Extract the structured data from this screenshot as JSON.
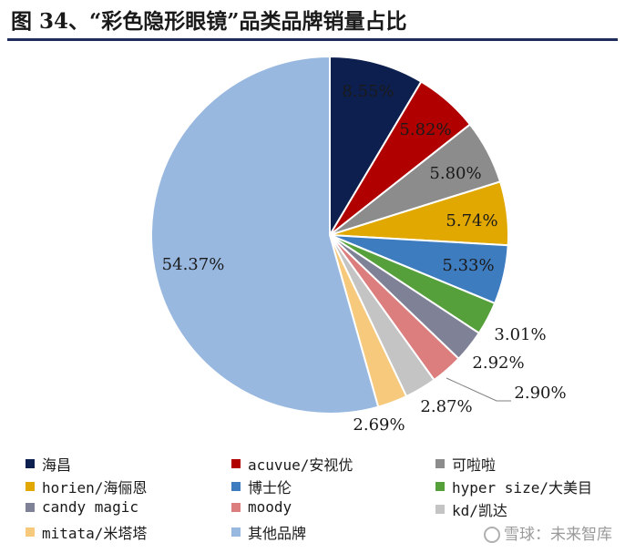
{
  "title": "图 34、“彩色隐形眼镜”品类品牌销量占比",
  "watermark": "雪球：未来智库",
  "chart_data": {
    "type": "pie",
    "series": [
      {
        "name": "海昌",
        "value": 8.55,
        "label": "8.55%",
        "color": "#0d1f4f"
      },
      {
        "name": "acuvue/安视优",
        "value": 5.82,
        "label": "5.82%",
        "color": "#b00000"
      },
      {
        "name": "可啦啦",
        "value": 5.8,
        "label": "5.80%",
        "color": "#8c8c8c"
      },
      {
        "name": "horien/海俪恩",
        "value": 5.74,
        "label": "5.74%",
        "color": "#e0a800"
      },
      {
        "name": "博士伦",
        "value": 5.33,
        "label": "5.33%",
        "color": "#3e7cc0"
      },
      {
        "name": "hyper size/大美目",
        "value": 3.01,
        "label": "3.01%",
        "color": "#55a03a"
      },
      {
        "name": "candy magic",
        "value": 2.92,
        "label": "2.92%",
        "color": "#7f8296"
      },
      {
        "name": "moody",
        "value": 2.9,
        "label": "2.90%",
        "color": "#dd7e7e"
      },
      {
        "name": "kd/凯达",
        "value": 2.87,
        "label": "2.87%",
        "color": "#c4c4c4"
      },
      {
        "name": "mitata/米塔塔",
        "value": 2.69,
        "label": "2.69%",
        "color": "#f6c97c"
      },
      {
        "name": "其他品牌",
        "value": 54.37,
        "label": "54.37%",
        "color": "#98b8e0"
      }
    ]
  }
}
